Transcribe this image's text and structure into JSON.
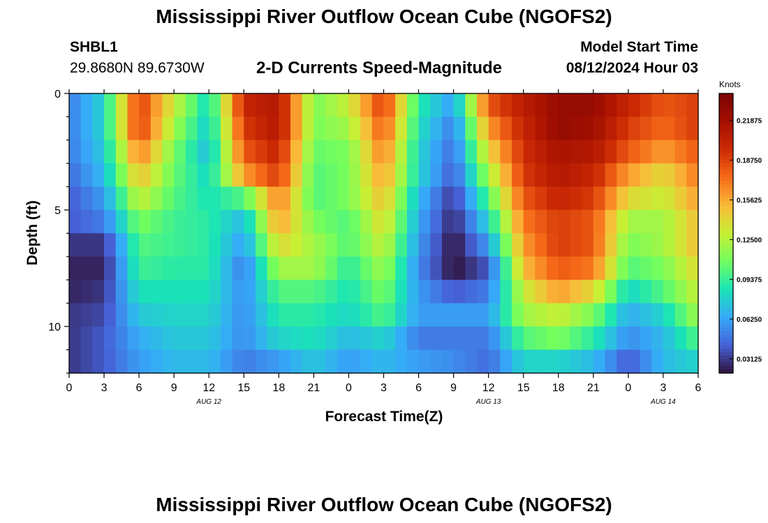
{
  "header": {
    "title": "Mississippi River Outflow Ocean Cube (NGOFS2)",
    "station_id": "SHBL1",
    "coordinates": "29.8680N  89.6730W",
    "subtitle": "2-D Currents Speed-Magnitude",
    "model_start_label": "Model Start Time",
    "model_start_value": "08/12/2024 Hour 03"
  },
  "footer": {
    "title": "Mississippi River Outflow Ocean Cube (NGOFS2)"
  },
  "chart_data": {
    "type": "heatmap",
    "title": "2-D Currents Speed-Magnitude",
    "xlabel": "Forecast Time(Z)",
    "ylabel": "Depth (ft)",
    "x_range_hours": [
      0,
      54
    ],
    "x_tick_hours": [
      0,
      3,
      6,
      9,
      12,
      15,
      18,
      21,
      24,
      27,
      30,
      33,
      36,
      39,
      42,
      45,
      48,
      51,
      54
    ],
    "x_tick_labels": [
      "0",
      "3",
      "6",
      "9",
      "12",
      "15",
      "18",
      "21",
      "0",
      "3",
      "6",
      "9",
      "12",
      "15",
      "18",
      "21",
      "0",
      "3",
      "6"
    ],
    "date_labels": [
      {
        "hour": 12,
        "label": "AUG 12"
      },
      {
        "hour": 36,
        "label": "AUG 13"
      },
      {
        "hour": 51,
        "label": "AUG 14"
      }
    ],
    "y_range": [
      0,
      12
    ],
    "y_tick_values": [
      0,
      5,
      10
    ],
    "y_tick_labels": [
      "0",
      "5",
      "10"
    ],
    "depth_levels_ft": [
      0.5,
      1.5,
      2.5,
      3.5,
      4.5,
      5.5,
      6.5,
      7.5,
      8.5,
      9.5,
      10.5,
      11.5
    ],
    "colorbar": {
      "units": "Knots",
      "range": [
        0.02,
        0.24
      ],
      "tick_values": [
        0.03125,
        0.0625,
        0.09375,
        0.125,
        0.15625,
        0.1875,
        0.21875
      ],
      "tick_labels": [
        "0.03125",
        "0.06250",
        "0.09375",
        "0.12500",
        "0.15625",
        "0.18750",
        "0.21875"
      ]
    },
    "speed_profile": {
      "description": "Current speed (knots) at each depth level, sampled every 3 forecast hours; intermediate hours interpolated",
      "hours": [
        0,
        3,
        6,
        9,
        12,
        15,
        18,
        21,
        24,
        27,
        30,
        33,
        36,
        39,
        42,
        45,
        48,
        51,
        54
      ],
      "values": [
        [
          0.05,
          0.08,
          0.19,
          0.13,
          0.08,
          0.2,
          0.21,
          0.11,
          0.13,
          0.19,
          0.09,
          0.06,
          0.18,
          0.205,
          0.225,
          0.225,
          0.2,
          0.18,
          0.19
        ],
        [
          0.05,
          0.08,
          0.19,
          0.12,
          0.075,
          0.19,
          0.21,
          0.11,
          0.12,
          0.18,
          0.085,
          0.05,
          0.16,
          0.2,
          0.225,
          0.22,
          0.19,
          0.175,
          0.19
        ],
        [
          0.05,
          0.075,
          0.17,
          0.11,
          0.07,
          0.18,
          0.2,
          0.105,
          0.11,
          0.17,
          0.08,
          0.045,
          0.14,
          0.195,
          0.215,
          0.21,
          0.18,
          0.16,
          0.18
        ],
        [
          0.045,
          0.07,
          0.15,
          0.105,
          0.08,
          0.16,
          0.19,
          0.1,
          0.11,
          0.16,
          0.08,
          0.04,
          0.12,
          0.19,
          0.21,
          0.2,
          0.16,
          0.14,
          0.17
        ],
        [
          0.04,
          0.06,
          0.13,
          0.1,
          0.085,
          0.1,
          0.17,
          0.1,
          0.11,
          0.15,
          0.07,
          0.03,
          0.1,
          0.18,
          0.2,
          0.19,
          0.14,
          0.13,
          0.16
        ],
        [
          0.04,
          0.05,
          0.11,
          0.095,
          0.09,
          0.07,
          0.16,
          0.11,
          0.1,
          0.14,
          0.065,
          0.025,
          0.08,
          0.17,
          0.19,
          0.18,
          0.12,
          0.12,
          0.15
        ],
        [
          0.03,
          0.03,
          0.1,
          0.095,
          0.09,
          0.06,
          0.14,
          0.12,
          0.1,
          0.13,
          0.06,
          0.02,
          0.06,
          0.16,
          0.19,
          0.18,
          0.11,
          0.12,
          0.15
        ],
        [
          0.025,
          0.025,
          0.095,
          0.09,
          0.09,
          0.05,
          0.12,
          0.12,
          0.09,
          0.12,
          0.055,
          0.02,
          0.04,
          0.15,
          0.18,
          0.17,
          0.1,
          0.11,
          0.14
        ],
        [
          0.025,
          0.03,
          0.085,
          0.085,
          0.085,
          0.055,
          0.1,
          0.1,
          0.085,
          0.11,
          0.06,
          0.04,
          0.05,
          0.13,
          0.16,
          0.14,
          0.08,
          0.1,
          0.13
        ],
        [
          0.03,
          0.035,
          0.075,
          0.08,
          0.08,
          0.055,
          0.09,
          0.09,
          0.08,
          0.1,
          0.06,
          0.06,
          0.06,
          0.12,
          0.13,
          0.11,
          0.065,
          0.08,
          0.12
        ],
        [
          0.03,
          0.04,
          0.065,
          0.075,
          0.075,
          0.055,
          0.08,
          0.085,
          0.07,
          0.08,
          0.05,
          0.05,
          0.05,
          0.1,
          0.11,
          0.09,
          0.055,
          0.07,
          0.1
        ],
        [
          0.03,
          0.04,
          0.06,
          0.07,
          0.07,
          0.05,
          0.06,
          0.075,
          0.06,
          0.07,
          0.06,
          0.055,
          0.045,
          0.08,
          0.08,
          0.07,
          0.04,
          0.07,
          0.08
        ]
      ]
    }
  }
}
